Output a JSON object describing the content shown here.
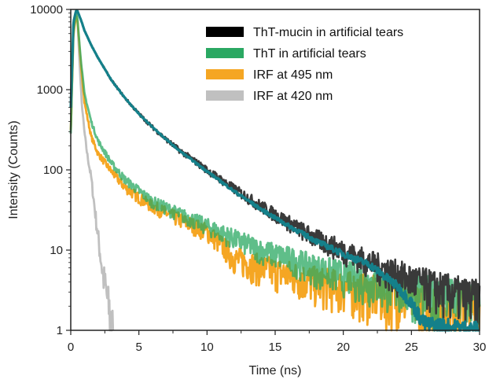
{
  "chart_data": {
    "type": "line",
    "xlabel": "Time (ns)",
    "ylabel": "Intensity (Counts)",
    "xlim": [
      0,
      30
    ],
    "ylim": [
      1,
      10000
    ],
    "yscale": "log",
    "x_ticks": [
      0,
      5,
      10,
      15,
      20,
      25,
      30
    ],
    "y_ticks": [
      1,
      10,
      100,
      1000,
      10000
    ],
    "x_tick_labels": [
      "0",
      "5",
      "10",
      "15",
      "20",
      "25",
      "30"
    ],
    "y_tick_labels": [
      "1",
      "10",
      "100",
      "1000",
      "10000"
    ],
    "grid": false,
    "legend_position": "top-right",
    "series": [
      {
        "name": "IRF at 420 nm",
        "color": "#c0c0c0",
        "x": [
          0,
          0.2,
          0.4,
          0.5,
          0.6,
          0.8,
          1.0,
          1.2,
          1.5,
          1.7,
          2.0,
          2.3,
          2.6,
          2.9,
          3.1
        ],
        "y": [
          300,
          6000,
          9200,
          7000,
          3000,
          700,
          300,
          160,
          80,
          40,
          15,
          6,
          3,
          1.5,
          1
        ]
      },
      {
        "name": "IRF at 495 nm",
        "color": "#f5a623",
        "x": [
          0,
          0.2,
          0.4,
          0.5,
          0.7,
          1.0,
          1.5,
          2.0,
          3.0,
          4.0,
          5.0,
          6.0,
          8.0,
          10.0,
          11.0,
          12.0,
          14.0,
          16.0,
          18.0,
          20.0,
          22.0,
          25.0,
          28.0,
          30.0
        ],
        "y": [
          300,
          5000,
          8500,
          7000,
          2500,
          700,
          260,
          160,
          95,
          60,
          45,
          35,
          24,
          17,
          12,
          8,
          6,
          5,
          4,
          3.5,
          3,
          2.5,
          2,
          2
        ]
      },
      {
        "name": "ThT in artificial tears",
        "color": "#2aa862",
        "x": [
          0,
          0.2,
          0.4,
          0.5,
          0.7,
          1.0,
          1.5,
          2.0,
          3.0,
          4.0,
          5.0,
          6.0,
          8.0,
          10.0,
          12.0,
          14.0,
          16.0,
          18.0,
          20.0,
          22.0,
          25.0,
          28.0,
          30.0
        ],
        "y": [
          300,
          5500,
          9000,
          7500,
          2800,
          900,
          400,
          230,
          120,
          75,
          55,
          40,
          28,
          20,
          14,
          10,
          8,
          6,
          5,
          4,
          3.2,
          2.6,
          2.4
        ]
      },
      {
        "name": "ThT-mucin in artificial tears",
        "color": "#3a3a3a",
        "x": [
          0,
          0.2,
          0.4,
          0.5,
          0.8,
          1.0,
          1.5,
          2.0,
          3.0,
          4.0,
          5.0,
          6.0,
          7.0,
          8.0,
          10.0,
          12.0,
          14.0,
          16.0,
          18.0,
          20.0,
          22.0,
          24.0,
          26.0,
          28.0,
          30.0
        ],
        "y": [
          600,
          7000,
          9800,
          9500,
          7000,
          5500,
          3600,
          2500,
          1300,
          780,
          500,
          340,
          240,
          175,
          100,
          58,
          35,
          22,
          14,
          10,
          7,
          5,
          3.8,
          3,
          2.5
        ]
      },
      {
        "name": "",
        "color": "#14808a",
        "x": [
          0,
          0.2,
          0.4,
          0.5,
          0.8,
          1.0,
          1.5,
          2.0,
          3.0,
          4.0,
          5.0,
          6.0,
          7.0,
          8.0,
          10.0,
          12.0,
          14.0,
          16.0,
          18.0,
          20.0,
          22.0,
          24.0,
          25.0,
          25.5,
          26.0,
          28.0,
          30.0
        ],
        "y": [
          600,
          7000,
          9800,
          9500,
          7000,
          5500,
          3600,
          2500,
          1300,
          780,
          500,
          340,
          240,
          172,
          96,
          54,
          32,
          20,
          13,
          9,
          6.5,
          3.5,
          2.2,
          1.6,
          1.2,
          1.1,
          1
        ]
      }
    ],
    "legend": [
      {
        "label": "ThT-mucin in artificial tears",
        "color": "#000000"
      },
      {
        "label": "ThT in artificial tears",
        "color": "#2aa862"
      },
      {
        "label": "IRF at 495 nm",
        "color": "#f5a623"
      },
      {
        "label": "IRF at 420 nm",
        "color": "#c0c0c0"
      }
    ]
  }
}
